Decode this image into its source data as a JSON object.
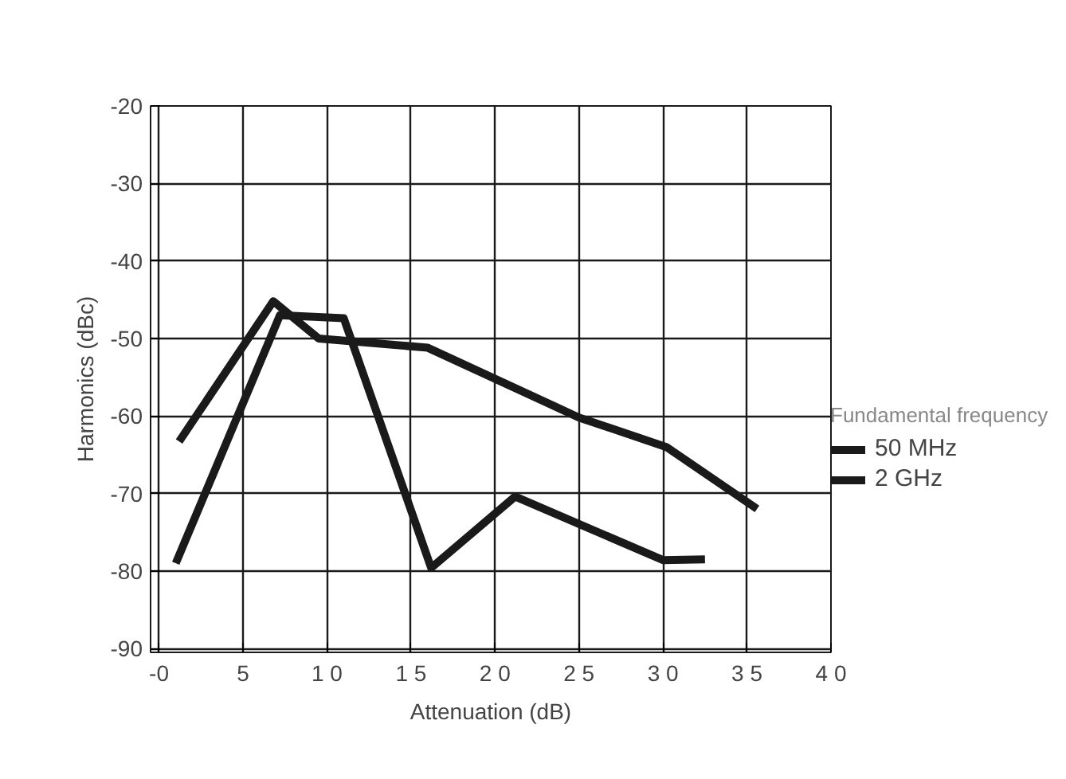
{
  "chart_data": {
    "type": "line",
    "xlabel": "Attenuation (dB)",
    "ylabel": "Harmonics (dBc)",
    "legend_title": "Fundamental frequency",
    "series": [
      {
        "name": "50 MHz",
        "color": "#1a1a1a",
        "x": [
          1.2,
          6.8,
          9.5,
          16.0,
          25.0,
          30.2,
          35.6
        ],
        "values": [
          -63.3,
          -45.2,
          -50.0,
          -51.2,
          -60.2,
          -64.0,
          -72.0
        ]
      },
      {
        "name": "2 GHz",
        "color": "#1a1a1a",
        "x": [
          1.0,
          7.2,
          11.0,
          16.2,
          21.2,
          30.0,
          32.5
        ],
        "values": [
          -79.0,
          -47.0,
          -47.4,
          -79.6,
          -70.4,
          -78.6,
          -78.5
        ]
      }
    ],
    "xlim": [
      -0.5,
      40
    ],
    "ylim": [
      -90.5,
      -20
    ],
    "xticks": [
      {
        "value": 0,
        "label": "-0"
      },
      5,
      {
        "value": 10,
        "label": "1 0"
      },
      {
        "value": 15,
        "label": "1 5"
      },
      {
        "value": 20,
        "label": "2 0"
      },
      {
        "value": 25,
        "label": "2 5"
      },
      {
        "value": 30,
        "label": "3 0"
      },
      {
        "value": 35,
        "label": "3 5"
      },
      {
        "value": 40,
        "label": "4 0"
      }
    ],
    "yticks": [
      -90,
      -80,
      -70,
      -60,
      -50,
      -40,
      -30,
      -20
    ],
    "grid": true,
    "legend": "right",
    "marker": "none",
    "line_style": "solid"
  }
}
